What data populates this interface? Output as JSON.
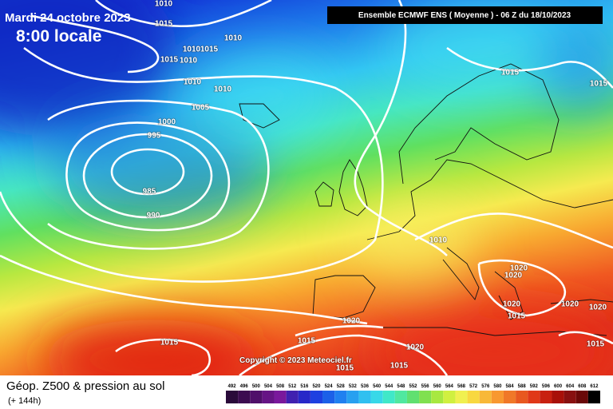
{
  "header": {
    "date": "Mardi 24 octobre 2023",
    "time": "8:00 locale",
    "run": "Ensemble ECMWF ENS  ( Moyenne )  -  06 Z du 18/10/2023"
  },
  "copyright": "Copyright © 2023 Meteociel.fr",
  "footer": {
    "title": "Géop. Z500 & pression au sol",
    "lead": "(+ 144h)"
  },
  "isobar_labels": [
    "1010",
    "1015",
    "1010",
    "1010",
    "1015",
    "1015",
    "1010",
    "1010",
    "1010",
    "1005",
    "1000",
    "995",
    "985",
    "990",
    "1015",
    "1015",
    "1010",
    "1020",
    "1020",
    "1020",
    "1020",
    "1020",
    "1020",
    "1015",
    "1015",
    "1020",
    "1015",
    "1015",
    "1015",
    "1015"
  ],
  "scale": {
    "labels": [
      "492",
      "496",
      "500",
      "504",
      "508",
      "512",
      "516",
      "520",
      "524",
      "528",
      "532",
      "536",
      "540",
      "544",
      "548",
      "552",
      "556",
      "560",
      "564",
      "568",
      "572",
      "576",
      "580",
      "584",
      "588",
      "592",
      "596",
      "600",
      "604",
      "608",
      "612"
    ],
    "colors": [
      "#2a0a3a",
      "#3c0c50",
      "#50106a",
      "#661485",
      "#7a189c",
      "#4020b0",
      "#2828c8",
      "#1e40e0",
      "#1c60e8",
      "#2080f0",
      "#28a0f0",
      "#30c0f0",
      "#38d8e8",
      "#40e8c8",
      "#50e8a0",
      "#60e070",
      "#80e050",
      "#a8e840",
      "#d0f040",
      "#f0f050",
      "#f8d840",
      "#f8b838",
      "#f89830",
      "#f07828",
      "#e85820",
      "#e03818",
      "#c82010",
      "#a81008",
      "#881010",
      "#6a0808",
      "#000000"
    ]
  }
}
